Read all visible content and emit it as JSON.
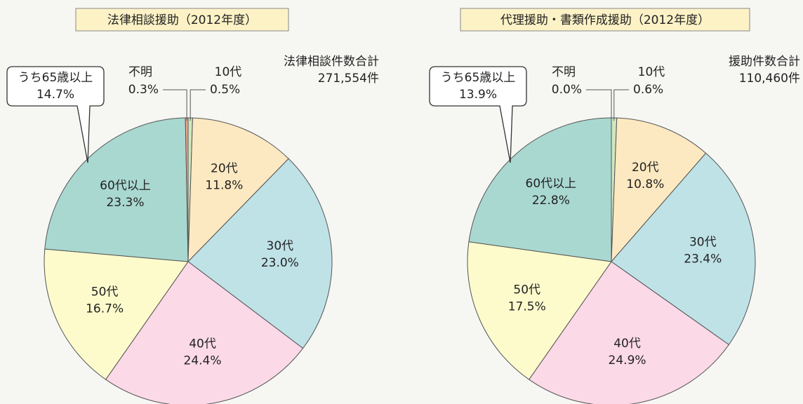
{
  "chart_data": [
    {
      "type": "pie",
      "title": "法律相談援助（2012年度）",
      "categories": [
        "10代",
        "20代",
        "30代",
        "40代",
        "50代",
        "60代以上",
        "不明"
      ],
      "values": [
        0.5,
        11.8,
        23.0,
        24.4,
        16.7,
        23.3,
        0.3
      ],
      "value_labels": [
        "0.5%",
        "11.8%",
        "23.0%",
        "24.4%",
        "16.7%",
        "23.3%",
        "0.3%"
      ],
      "colors": [
        "#cfe6bf",
        "#fde9c1",
        "#bfe2e7",
        "#fbd9e7",
        "#fdfbcc",
        "#a9d8d0",
        "#f1a490"
      ],
      "total_label": "法律相談件数合計",
      "total_value": "271,554件",
      "subgroup": {
        "label": "うち65歳以上",
        "value": 14.7,
        "value_label": "14.7%"
      }
    },
    {
      "type": "pie",
      "title": "代理援助・書類作成援助（2012年度）",
      "categories": [
        "10代",
        "20代",
        "30代",
        "40代",
        "50代",
        "60代以上",
        "不明"
      ],
      "values": [
        0.6,
        10.8,
        23.4,
        24.9,
        17.5,
        22.8,
        0.0
      ],
      "value_labels": [
        "0.6%",
        "10.8%",
        "23.4%",
        "24.9%",
        "17.5%",
        "22.8%",
        "0.0%"
      ],
      "colors": [
        "#cfe6bf",
        "#fde9c1",
        "#bfe2e7",
        "#fbd9e7",
        "#fdfbcc",
        "#a9d8d0",
        "#f1a490"
      ],
      "total_label": "援助件数合計",
      "total_value": "110,460件",
      "subgroup": {
        "label": "うち65歳以上",
        "value": 13.9,
        "value_label": "13.9%"
      }
    }
  ]
}
